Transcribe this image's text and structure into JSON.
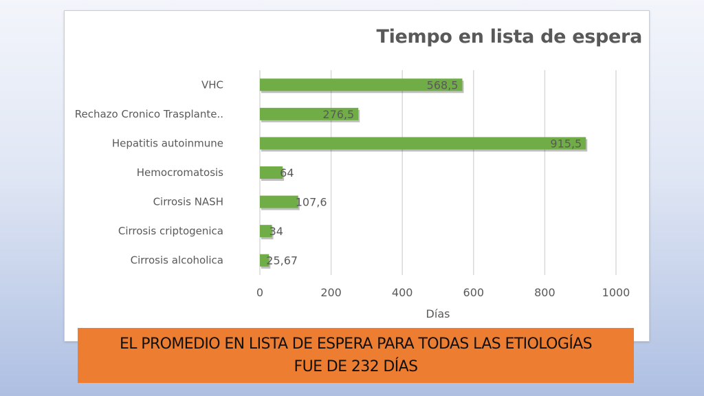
{
  "chart_data": {
    "type": "bar",
    "orientation": "horizontal",
    "title": "Tiempo en lista de espera",
    "xlabel": "Días",
    "ylabel": "",
    "categories": [
      "VHC",
      "Rechazo Cronico Trasplante..",
      "Hepatitis autoinmune",
      "Hemocromatosis",
      "Cirrosis NASH",
      "Cirrosis criptogenica",
      "Cirrosis alcoholica"
    ],
    "values": [
      568.5,
      276.5,
      915.5,
      64,
      107.6,
      34,
      25.67
    ],
    "value_labels": [
      "568,5",
      "276,5",
      "915,5",
      "64",
      "107,6",
      "34",
      "25,67"
    ],
    "xlim": [
      0,
      1000
    ],
    "x_ticks": [
      0,
      200,
      400,
      600,
      800,
      1000
    ],
    "x_tick_labels": [
      "0",
      "200",
      "400",
      "600",
      "800",
      "1000"
    ],
    "grid": true,
    "colors": {
      "bar": "#70ad47",
      "text": "#595959",
      "grid": "#d9d9d9"
    }
  },
  "footer": {
    "line1": "EL PROMEDIO EN LISTA DE ESPERA PARA TODAS LAS ETIOLOGÍAS",
    "line2": "FUE DE 232 DÍAS",
    "color": "#ed7d31"
  }
}
